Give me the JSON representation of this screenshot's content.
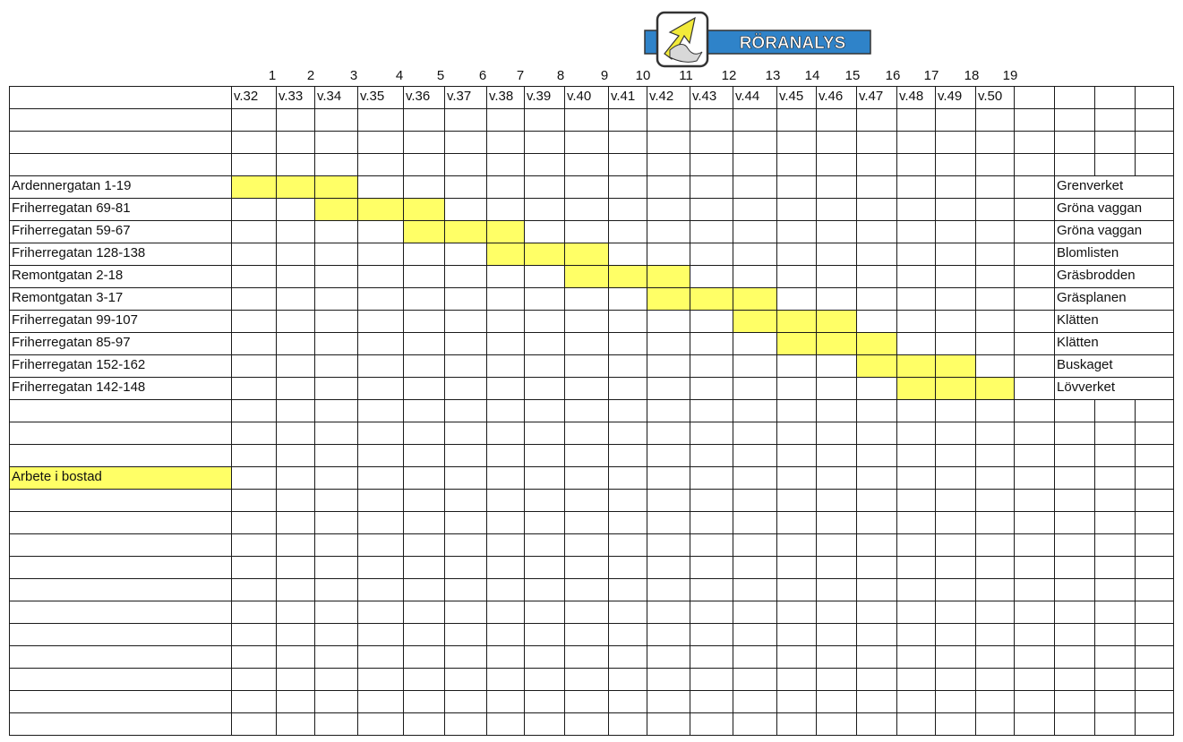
{
  "logo": {
    "text": "RÖRANALYS",
    "colors": {
      "blue": "#2f83c9",
      "yellow": "#f2ea3a",
      "frame": "#333333"
    }
  },
  "week_numbers": [
    "1",
    "2",
    "3",
    "4",
    "5",
    "6",
    "7",
    "8",
    "9",
    "10",
    "11",
    "12",
    "13",
    "14",
    "15",
    "16",
    "17",
    "18",
    "19"
  ],
  "week_labels": [
    "v.32",
    "v.33",
    "v.34",
    "v.35",
    "v.36",
    "v.37",
    "v.38",
    "v.39",
    "v.40",
    "v.41",
    "v.42",
    "v.43",
    "v.44",
    "v.45",
    "v.46",
    "v.47",
    "v.48",
    "v.49",
    "v.50"
  ],
  "rows": [
    {
      "address": "Ardennergatan 1-19",
      "area": "Grenverket",
      "weeks": [
        1,
        2,
        3
      ]
    },
    {
      "address": "Friherregatan 69-81",
      "area": "Gröna vaggan",
      "weeks": [
        3,
        4,
        5
      ]
    },
    {
      "address": "Friherregatan 59-67",
      "area": "Gröna vaggan",
      "weeks": [
        5,
        6,
        7
      ]
    },
    {
      "address": "Friherregatan 128-138",
      "area": "Blomlisten",
      "weeks": [
        7,
        8,
        9
      ]
    },
    {
      "address": "Remontgatan 2-18",
      "area": "Gräsbrodden",
      "weeks": [
        9,
        10,
        11
      ]
    },
    {
      "address": "Remontgatan 3-17",
      "area": "Gräsplanen",
      "weeks": [
        11,
        12,
        13
      ]
    },
    {
      "address": "Friherregatan 99-107",
      "area": "Klätten",
      "weeks": [
        13,
        14,
        15
      ]
    },
    {
      "address": "Friherregatan 85-97",
      "area": "Klätten",
      "weeks": [
        14,
        15,
        16
      ]
    },
    {
      "address": "Friherregatan 152-162",
      "area": "Buskaget",
      "weeks": [
        16,
        17,
        18
      ]
    },
    {
      "address": "Friherregatan 142-148",
      "area": "Lövverket",
      "weeks": [
        17,
        18,
        19
      ]
    }
  ],
  "legend": {
    "label": "Arbete i bostad"
  },
  "highlight_color": "#ffff66"
}
